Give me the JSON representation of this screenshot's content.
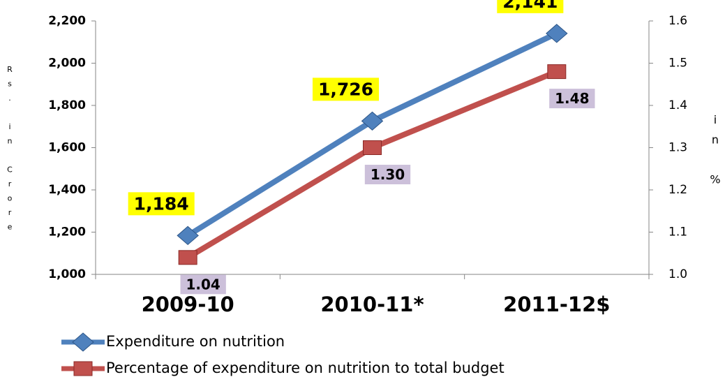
{
  "chart_data": {
    "type": "line",
    "y_label": "Rs. in Crore",
    "y2_label": "in %",
    "categories": [
      "2009-10",
      "2010-11*",
      "2011-12$"
    ],
    "series": [
      {
        "name": "Expenditure on nutrition",
        "color": "#4f81bd",
        "marker": "diamond",
        "label_background": "#ffff00",
        "values": [
          1184,
          1726,
          2141
        ],
        "value_labels": [
          "1,184",
          "1,726",
          "2,141"
        ]
      },
      {
        "name": "Percentage of expenditure on nutrition to total budget",
        "color": "#c0504d",
        "marker": "square",
        "label_background": "#ccc0da",
        "axis": "y2",
        "values": [
          1.04,
          1.3,
          1.48
        ],
        "value_labels": [
          "1.04",
          "1.30",
          "1.48"
        ]
      }
    ],
    "ylim": [
      1000,
      2200
    ],
    "yticks": [
      {
        "value": 1000,
        "label": "1,000"
      },
      {
        "value": 1200,
        "label": "1,200"
      },
      {
        "value": 1400,
        "label": "1,400"
      },
      {
        "value": 1600,
        "label": "1,600"
      },
      {
        "value": 1800,
        "label": "1,800"
      },
      {
        "value": 2000,
        "label": "2,000"
      },
      {
        "value": 2200,
        "label": "2,200"
      }
    ],
    "y2lim": [
      1.0,
      1.6
    ],
    "y2ticks": [
      {
        "value": 1.0,
        "label": "1.0"
      },
      1.1,
      1.2,
      1.3,
      1.4,
      1.5,
      1.6
    ],
    "grid": false
  }
}
